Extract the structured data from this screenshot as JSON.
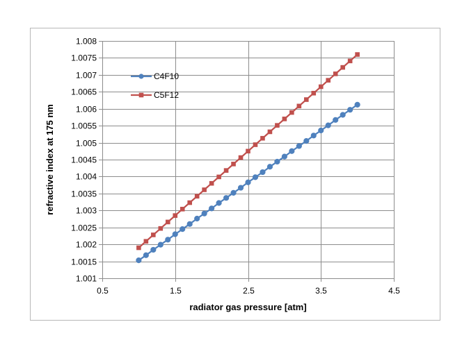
{
  "chart_data": {
    "type": "line",
    "xlabel": "radiator gas pressure [atm]",
    "ylabel": "refractive index at 175 nm",
    "xlim": [
      0.5,
      4.5
    ],
    "ylim": [
      1.001,
      1.008
    ],
    "x_ticks": [
      "0.5",
      "1.5",
      "2.5",
      "3.5",
      "4.5"
    ],
    "y_ticks": [
      "1.001",
      "1.0015",
      "1.002",
      "1.0025",
      "1.003",
      "1.0035",
      "1.004",
      "1.0045",
      "1.005",
      "1.0055",
      "1.006",
      "1.0065",
      "1.007",
      "1.0075",
      "1.008"
    ],
    "x_tick_values": [
      0.5,
      1.5,
      2.5,
      3.5,
      4.5
    ],
    "y_tick_values": [
      1.001,
      1.0015,
      1.002,
      1.0025,
      1.003,
      1.0035,
      1.004,
      1.0045,
      1.005,
      1.0055,
      1.006,
      1.0065,
      1.007,
      1.0075,
      1.008
    ],
    "grid": true,
    "legend_position": "top-left",
    "x": [
      1.0,
      1.1,
      1.2,
      1.3,
      1.4,
      1.5,
      1.6,
      1.7,
      1.8,
      1.9,
      2.0,
      2.1,
      2.2,
      2.3,
      2.4,
      2.5,
      2.6,
      2.7,
      2.8,
      2.9,
      3.0,
      3.1,
      3.2,
      3.3,
      3.4,
      3.5,
      3.6,
      3.7,
      3.8,
      3.9,
      4.0
    ],
    "series": [
      {
        "name": "C4F10",
        "color": "#4f81bd",
        "marker": "circle",
        "values": [
          1.00153,
          1.00168,
          1.00184,
          1.00199,
          1.00214,
          1.0023,
          1.00245,
          1.0026,
          1.00276,
          1.00291,
          1.00306,
          1.00322,
          1.00337,
          1.00352,
          1.00367,
          1.00383,
          1.00398,
          1.00413,
          1.00429,
          1.00444,
          1.00459,
          1.00475,
          1.0049,
          1.00505,
          1.00521,
          1.00536,
          1.00551,
          1.00567,
          1.00582,
          1.00597,
          1.00612
        ]
      },
      {
        "name": "C5F12",
        "color": "#c0504d",
        "marker": "square",
        "values": [
          1.0019,
          1.00209,
          1.00228,
          1.00247,
          1.00266,
          1.00285,
          1.00304,
          1.00323,
          1.00342,
          1.00361,
          1.0038,
          1.00399,
          1.00418,
          1.00437,
          1.00456,
          1.00475,
          1.00494,
          1.00513,
          1.00532,
          1.00551,
          1.0057,
          1.00589,
          1.00608,
          1.00627,
          1.00646,
          1.00665,
          1.00684,
          1.00703,
          1.00722,
          1.00741,
          1.0076
        ]
      }
    ]
  }
}
